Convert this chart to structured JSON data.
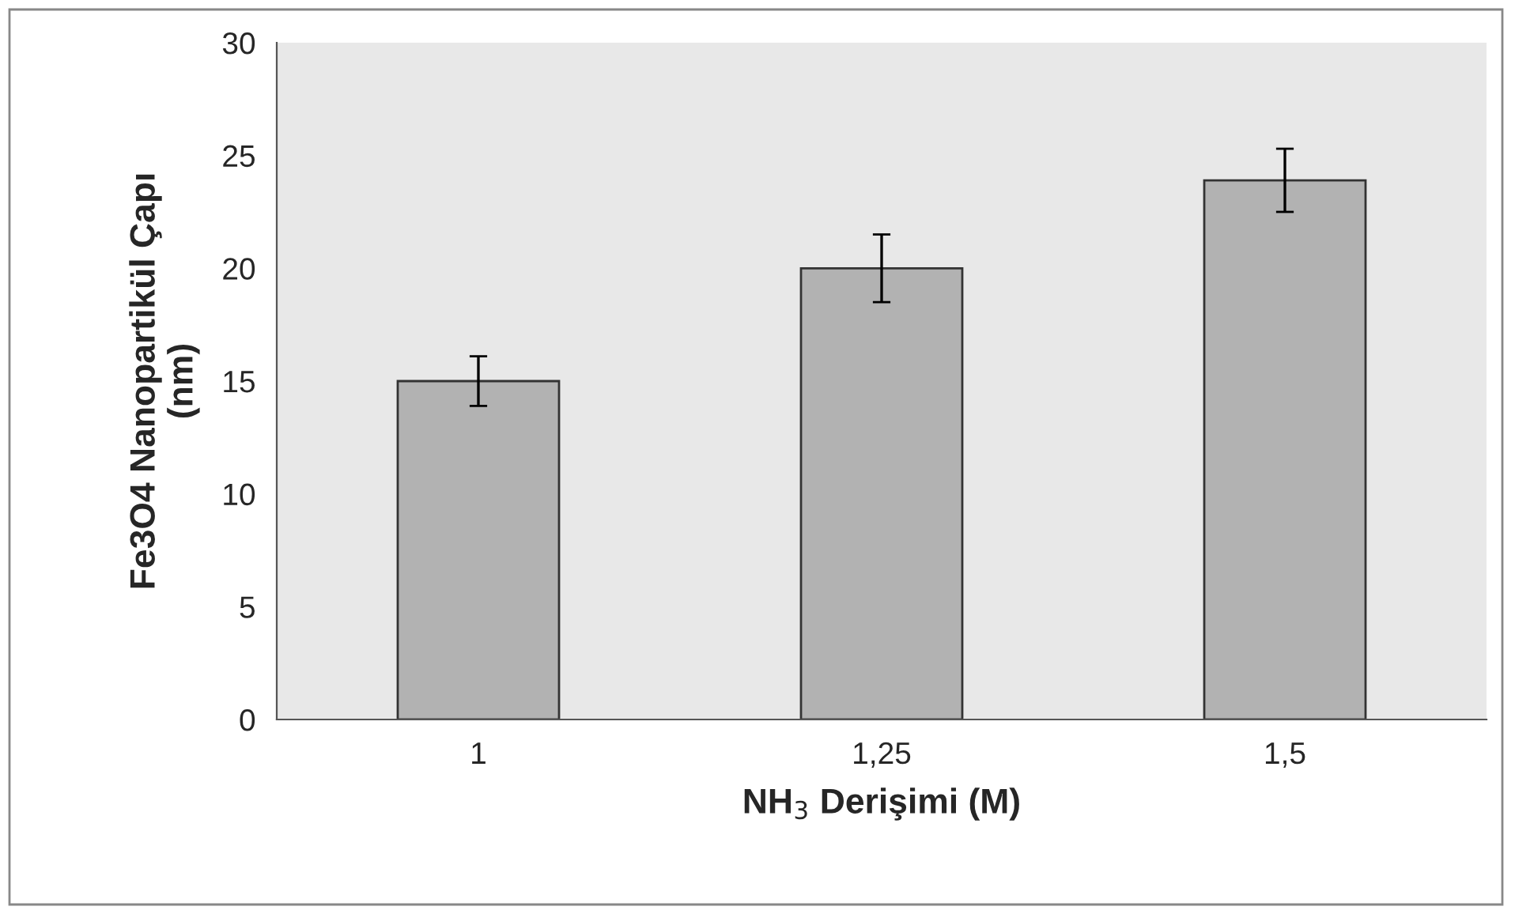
{
  "chart_data": {
    "type": "bar",
    "categories": [
      "1",
      "1,25",
      "1,5"
    ],
    "series": [
      {
        "color": "#b2b2b2",
        "values": [
          15,
          20,
          23.9
        ],
        "errors": [
          1.1,
          1.5,
          1.4
        ]
      }
    ],
    "xlabel": "NH$_{3}$ Derişimi (M)",
    "ylabel": "Fe3O4 Nanopartikül Çapı\n(nm)",
    "ylim": [
      0,
      30
    ],
    "yticks": [
      0,
      5,
      10,
      15,
      20,
      25,
      30
    ],
    "grid": false,
    "legend": false
  }
}
